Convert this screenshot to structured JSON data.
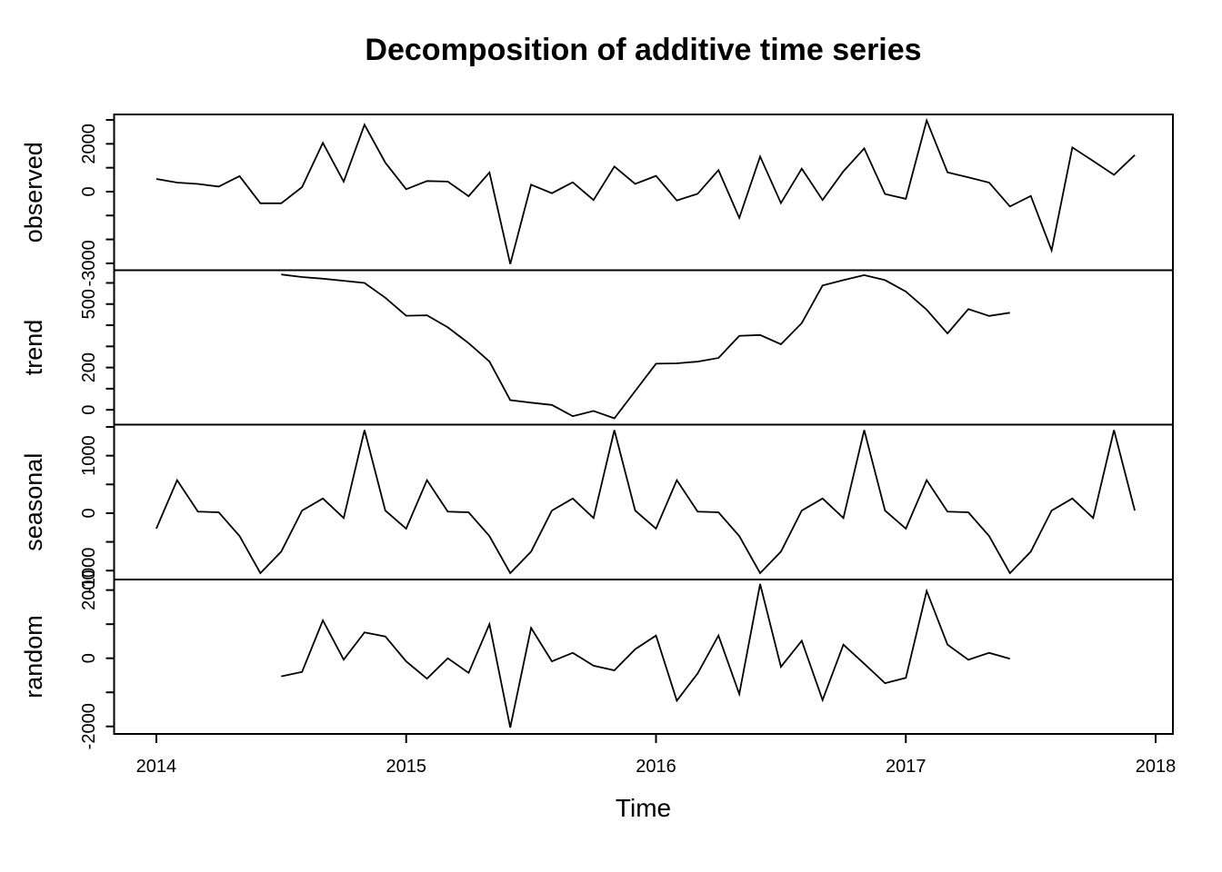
{
  "chart_data": {
    "type": "line",
    "title": "Decomposition of additive time series",
    "xlabel": "Time",
    "line_color": "#000000",
    "x_start_year": 2014,
    "points_per_year": 12,
    "n_points": 48,
    "xlim": [
      2013.831,
      2018.069
    ],
    "x_ticks": [
      {
        "value": 2014,
        "label": "2014"
      },
      {
        "value": 2015,
        "label": "2015"
      },
      {
        "value": 2016,
        "label": "2016"
      },
      {
        "value": 2017,
        "label": "2017"
      },
      {
        "value": 2018,
        "label": "2018"
      }
    ],
    "panels": [
      {
        "name": "observed",
        "ylim": [
          -3290,
          3230
        ],
        "ticks": [
          -3000,
          -2000,
          -1000,
          0,
          1000,
          2000,
          3000
        ],
        "labeled_ticks": [
          {
            "value": 2000,
            "label": "2000"
          },
          {
            "value": 0,
            "label": "0"
          },
          {
            "value": -3000,
            "label": "-3000"
          }
        ],
        "start_month_index": 0,
        "values": [
          530,
          380,
          320,
          210,
          650,
          -490,
          -490,
          190,
          2040,
          420,
          2800,
          1210,
          100,
          445,
          420,
          -190,
          800,
          -3030,
          290,
          -65,
          390,
          -350,
          1050,
          320,
          660,
          -370,
          -90,
          900,
          -1100,
          1470,
          -480,
          960,
          -350,
          850,
          1810,
          -100,
          -300,
          2980,
          810,
          600,
          380,
          -620,
          -180,
          -2460,
          1850,
          1280,
          700,
          1530
        ]
      },
      {
        "name": "trend",
        "ylim": [
          -70,
          660
        ],
        "ticks": [
          0,
          100,
          200,
          300,
          400,
          500,
          600
        ],
        "labeled_ticks": [
          {
            "value": 500,
            "label": "500"
          },
          {
            "value": 200,
            "label": "200"
          },
          {
            "value": 0,
            "label": "0"
          }
        ],
        "start_month_index": 6,
        "values": [
          640,
          628,
          620,
          610,
          600,
          530,
          445,
          447,
          390,
          315,
          229,
          46,
          34,
          23,
          -30,
          -5,
          -40,
          89,
          218,
          220,
          228,
          245,
          350,
          354,
          310,
          410,
          588,
          613,
          637,
          613,
          559,
          473,
          361,
          476,
          444,
          459
        ]
      },
      {
        "name": "seasonal",
        "ylim": [
          -1155,
          1540
        ],
        "ticks": [
          -1000,
          -500,
          0,
          500,
          1000,
          1500
        ],
        "labeled_ticks": [
          {
            "value": 1000,
            "label": "1000"
          },
          {
            "value": 0,
            "label": "0"
          },
          {
            "value": -1000,
            "label": "-1000"
          }
        ],
        "start_month_index": 0,
        "values": [
          -270,
          575,
          25,
          15,
          -400,
          -1045,
          -670,
          45,
          255,
          -85,
          1445,
          45,
          -270,
          575,
          25,
          15,
          -400,
          -1045,
          -670,
          45,
          255,
          -85,
          1445,
          45,
          -270,
          575,
          25,
          15,
          -400,
          -1045,
          -670,
          45,
          255,
          -85,
          1445,
          45,
          -270,
          575,
          25,
          15,
          -400,
          -1045,
          -670,
          45,
          255,
          -85,
          1445,
          45
        ]
      },
      {
        "name": "random",
        "ylim": [
          -2220,
          2310
        ],
        "ticks": [
          -2000,
          -1000,
          0,
          1000,
          2000
        ],
        "labeled_ticks": [
          {
            "value": 2000,
            "label": "2000"
          },
          {
            "value": 0,
            "label": "0"
          },
          {
            "value": -2000,
            "label": "-2000"
          }
        ],
        "start_month_index": 6,
        "values": [
          -530,
          -400,
          1110,
          -40,
          760,
          640,
          -90,
          -600,
          0,
          -430,
          1000,
          -2030,
          890,
          -90,
          160,
          -220,
          -355,
          265,
          665,
          -1245,
          -445,
          665,
          -1050,
          2180,
          -250,
          515,
          -1225,
          400,
          -160,
          -730,
          -575,
          1975,
          400,
          -45,
          160,
          -15
        ]
      }
    ]
  }
}
